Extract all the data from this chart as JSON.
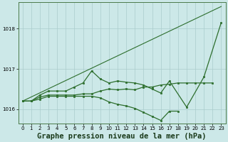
{
  "background_color": "#cce8e8",
  "grid_color": "#aacccc",
  "line_color": "#2d6e2d",
  "title": "Graphe pression niveau de la mer (hPa)",
  "title_fontsize": 7.5,
  "xlim": [
    -0.5,
    23.5
  ],
  "ylim": [
    1015.65,
    1018.65
  ],
  "yticks": [
    1016,
    1017,
    1018
  ],
  "xticks": [
    0,
    1,
    2,
    3,
    4,
    5,
    6,
    7,
    8,
    9,
    10,
    11,
    12,
    13,
    14,
    15,
    16,
    17,
    18,
    19,
    20,
    21,
    22,
    23
  ],
  "series": [
    {
      "x": [
        0,
        23
      ],
      "y": [
        1016.2,
        1018.55
      ],
      "marker": "none",
      "linestyle": "-",
      "linewidth": 0.8
    },
    {
      "x": [
        0,
        1,
        2,
        3,
        4,
        5,
        6,
        7,
        8,
        9,
        10,
        11,
        12,
        13,
        14,
        15,
        16,
        17,
        19,
        21,
        23
      ],
      "y": [
        1016.2,
        1016.2,
        1016.35,
        1016.45,
        1016.45,
        1016.45,
        1016.55,
        1016.65,
        1016.95,
        1016.75,
        1016.65,
        1016.7,
        1016.67,
        1016.65,
        1016.6,
        1016.5,
        1016.4,
        1016.7,
        1016.05,
        1016.8,
        1018.15
      ],
      "marker": "s",
      "linestyle": "-",
      "linewidth": 0.9
    },
    {
      "x": [
        0,
        1,
        2,
        3,
        4,
        5,
        6,
        7,
        8,
        9,
        10,
        11,
        12,
        13,
        14,
        15,
        16,
        17,
        18,
        19,
        20,
        21,
        22
      ],
      "y": [
        1016.2,
        1016.2,
        1016.3,
        1016.35,
        1016.35,
        1016.35,
        1016.35,
        1016.38,
        1016.38,
        1016.45,
        1016.5,
        1016.48,
        1016.5,
        1016.48,
        1016.55,
        1016.55,
        1016.6,
        1016.62,
        1016.65,
        1016.65,
        1016.65,
        1016.65,
        1016.65
      ],
      "marker": "s",
      "linestyle": "-",
      "linewidth": 0.9
    },
    {
      "x": [
        0,
        1,
        2,
        3,
        4,
        5,
        6,
        7,
        8,
        9,
        10,
        11,
        12,
        13,
        14,
        15,
        16,
        17,
        18
      ],
      "y": [
        1016.2,
        1016.2,
        1016.25,
        1016.32,
        1016.32,
        1016.32,
        1016.32,
        1016.32,
        1016.32,
        1016.28,
        1016.18,
        1016.12,
        1016.08,
        1016.02,
        1015.92,
        1015.82,
        1015.72,
        1015.95,
        1015.95
      ],
      "marker": "s",
      "linestyle": "-",
      "linewidth": 0.9
    }
  ]
}
